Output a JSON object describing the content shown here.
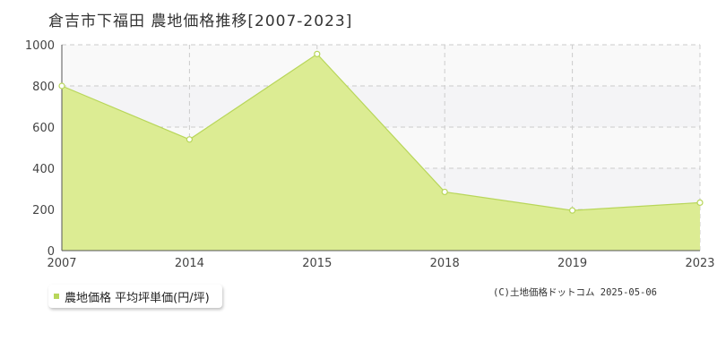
{
  "title": "倉吉市下福田 農地価格推移[2007-2023]",
  "legend_label": "農地価格 平均坪単価(円/坪)",
  "copyright": "(C)土地価格ドットコム 2025-05-06",
  "colors": {
    "fill": "#dcec93",
    "line": "#b8d65a",
    "grid": "#cccccc",
    "plot_bg": "#f9f9f9",
    "alt_band": "#f4f4f6"
  },
  "chart_data": {
    "type": "area",
    "title": "倉吉市下福田 農地価格推移[2007-2023]",
    "xlabel": "",
    "ylabel": "",
    "categories": [
      "2007",
      "2014",
      "2015",
      "2018",
      "2019",
      "2023"
    ],
    "series": [
      {
        "name": "農地価格 平均坪単価(円/坪)",
        "values": [
          800,
          540,
          955,
          285,
          195,
          233
        ]
      }
    ],
    "yticks": [
      0,
      200,
      400,
      600,
      800,
      1000
    ],
    "ylim": [
      0,
      1000
    ],
    "grid": true,
    "legend_position": "bottom-left"
  }
}
